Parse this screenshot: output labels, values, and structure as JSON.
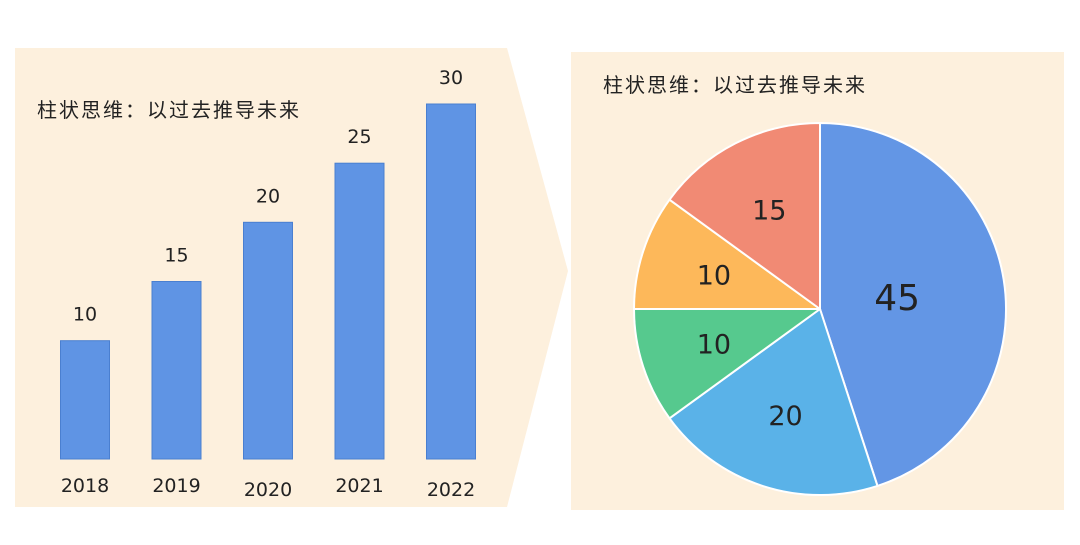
{
  "colors": {
    "panel_bg": "#fdf0dd",
    "bar": "#5f94e4",
    "bar_stroke": "#4a7fd0",
    "slice_stroke": "#ffffff"
  },
  "chart_data": [
    {
      "type": "bar",
      "title": "柱状思维：以过去推导未来",
      "categories": [
        "2018",
        "2019",
        "2020",
        "2021",
        "2022"
      ],
      "values": [
        10,
        15,
        20,
        25,
        30
      ],
      "xlabel": "",
      "ylabel": "",
      "ylim": [
        0,
        30
      ],
      "grid": false,
      "legend": "none"
    },
    {
      "type": "pie",
      "title": "柱状思维：以过去推导未来",
      "values": [
        45,
        20,
        10,
        10,
        15
      ],
      "labels": [
        "45",
        "20",
        "10",
        "10",
        "15"
      ],
      "colors": [
        "#6396e5",
        "#5ab2e8",
        "#56c98e",
        "#fdb85a",
        "#f18a74"
      ],
      "legend": "none"
    }
  ]
}
